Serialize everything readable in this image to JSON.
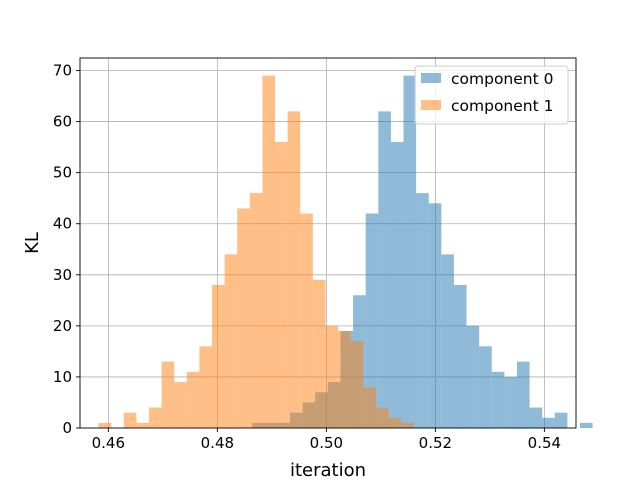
{
  "chart_data": {
    "type": "bar",
    "subtype": "overlaid-histogram",
    "title": "",
    "xlabel": "iteration",
    "ylabel": "KL",
    "xlim": [
      0.4548,
      0.5458
    ],
    "ylim": [
      0,
      72.45
    ],
    "xticks": [
      0.46,
      0.48,
      0.5,
      0.52,
      0.54
    ],
    "xtick_labels": [
      "0.46",
      "0.48",
      "0.50",
      "0.52",
      "0.54"
    ],
    "yticks": [
      0,
      10,
      20,
      30,
      40,
      50,
      60,
      70
    ],
    "ytick_labels": [
      "0",
      "10",
      "20",
      "30",
      "40",
      "50",
      "60",
      "70"
    ],
    "grid": true,
    "legend_position": "top-right",
    "series": [
      {
        "name": "component 0",
        "color": "#1f77b4",
        "alpha": 0.5,
        "bin_start": 0.4864,
        "bin_width": 0.002313,
        "counts": [
          1,
          1,
          1,
          3,
          5,
          7,
          9,
          19,
          26,
          42,
          62,
          56,
          69,
          46,
          44,
          34,
          28,
          20,
          16,
          11,
          10,
          13,
          4,
          2,
          3,
          0,
          1
        ]
      },
      {
        "name": "component 1",
        "color": "#ff7f0e",
        "alpha": 0.5,
        "bin_start": 0.4582,
        "bin_width": 0.002313,
        "counts": [
          1,
          0,
          3,
          1,
          4,
          13,
          9,
          11,
          16,
          28,
          34,
          43,
          46,
          69,
          56,
          62,
          42,
          29,
          20,
          19,
          17,
          8,
          4,
          2,
          1
        ]
      }
    ]
  }
}
